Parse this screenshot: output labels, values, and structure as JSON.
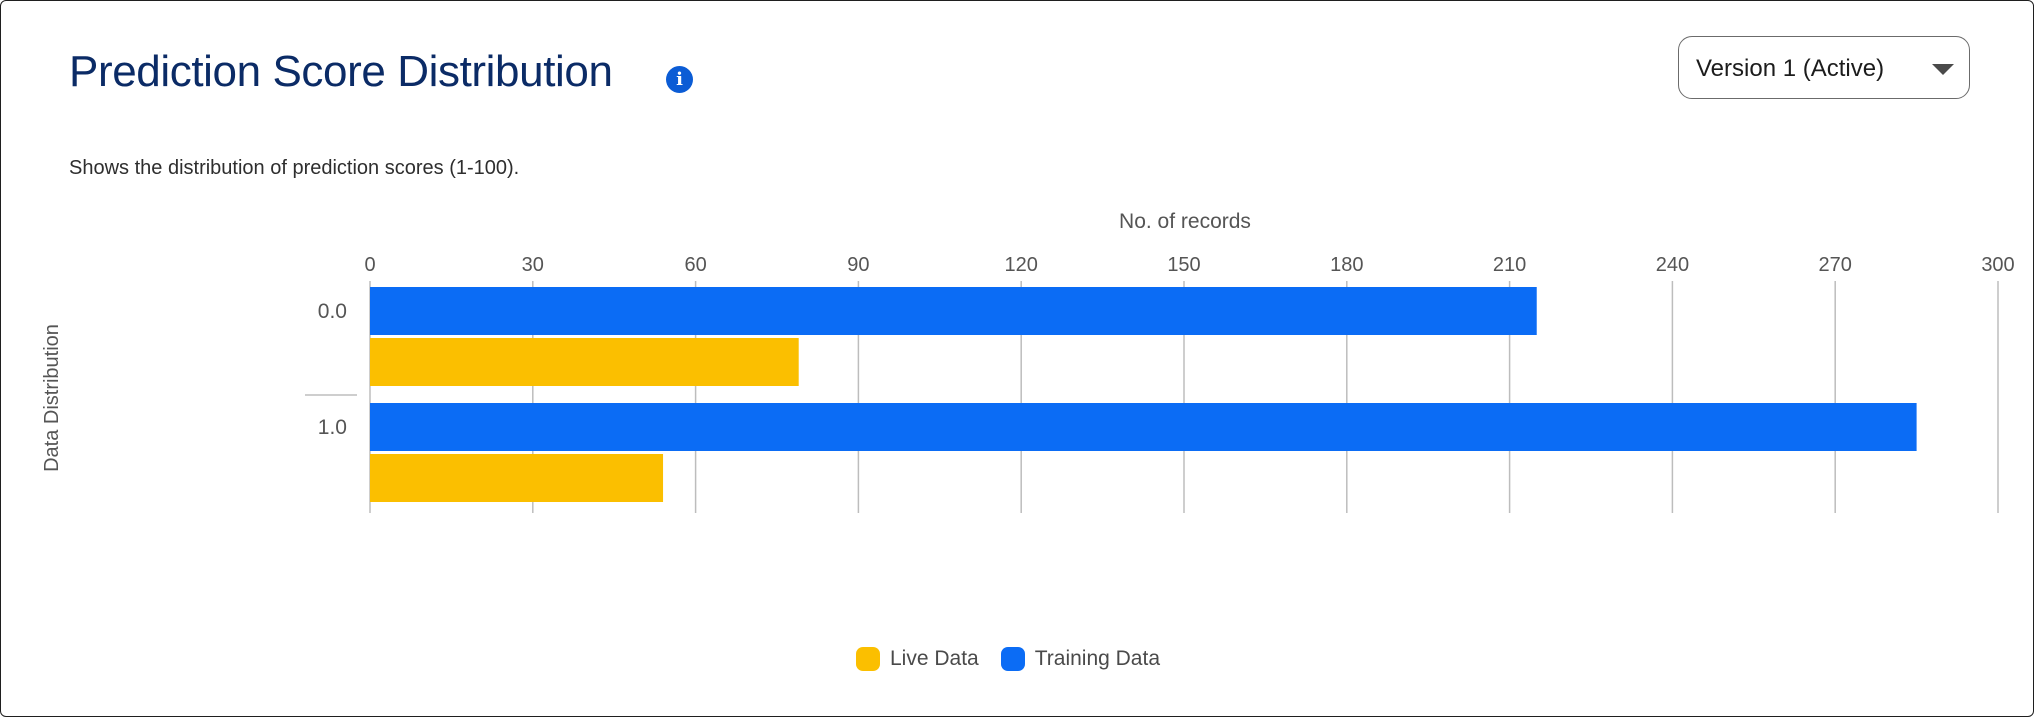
{
  "header": {
    "title": "Prediction Score Distribution",
    "info_icon": "info-icon",
    "version_select": {
      "selected": "Version 1 (Active)",
      "icon": "chevron-down-icon"
    }
  },
  "subtitle": "Shows the distribution of prediction scores (1-100).",
  "chart_data": {
    "type": "bar",
    "orientation": "horizontal",
    "categories": [
      "0.0",
      "1.0"
    ],
    "series": [
      {
        "name": "Training Data",
        "values": [
          215,
          285
        ],
        "color": "#0b6cf5"
      },
      {
        "name": "Live Data",
        "values": [
          79,
          54
        ],
        "color": "#fbbf00"
      }
    ],
    "xlabel": "No. of records",
    "ylabel": "Data Distribution",
    "xlim": [
      0,
      300
    ],
    "xticks": [
      0,
      30,
      60,
      90,
      120,
      150,
      180,
      210,
      240,
      270,
      300
    ],
    "x_axis_position": "top",
    "grid": true,
    "legend": {
      "placement": "bottom-center",
      "order": [
        "Live Data",
        "Training Data"
      ]
    }
  }
}
